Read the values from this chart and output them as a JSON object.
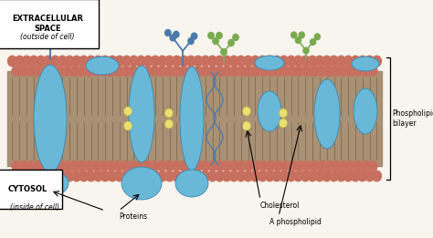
{
  "bg_color": "#f8f4ee",
  "head_color": "#c87060",
  "tail_color": "#9a8060",
  "protein_color": "#6ab8d8",
  "protein_edge": "#4a90b8",
  "glycoprotein_color": "#4a7aaa",
  "glycolipid_color": "#7aaa50",
  "cholesterol_color": "#e8e070",
  "extracellular_label": "EXTRACELLULAR\nSPACE",
  "outside_label": "(outside of cell)",
  "cytosol_label": "CYTOSOL",
  "inside_label": "(inside of cell)",
  "proteins_label": "Proteins",
  "cholesterol_label": "Cholesterol",
  "phospholipid_label": "A phospholipid",
  "bilayer_label": "Phospholipid\nbilayer",
  "fig_width": 4.74,
  "fig_height": 2.61,
  "dpi": 100
}
